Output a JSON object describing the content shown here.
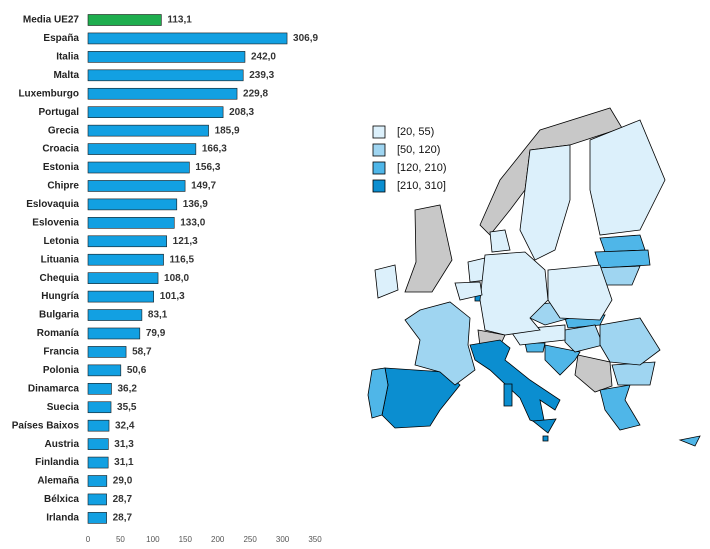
{
  "chart_data": {
    "type": "bar",
    "orientation": "horizontal",
    "categories": [
      "Media  UE27",
      "España",
      "Italia",
      "Malta",
      "Luxemburgo",
      "Portugal",
      "Grecia",
      "Croacia",
      "Estonia",
      "Chipre",
      "Eslovaquia",
      "Eslovenia",
      "Letonia",
      "Lituania",
      "Chequia",
      "Hungría",
      "Bulgaria",
      "Romanía",
      "Francia",
      "Polonia",
      "Dinamarca",
      "Suecia",
      "Países Baixos",
      "Austria",
      "Finlandia",
      "Alemaña",
      "Bélxica",
      "Irlanda"
    ],
    "values": [
      113.1,
      306.9,
      242.0,
      239.3,
      229.8,
      208.3,
      185.9,
      166.3,
      156.3,
      149.7,
      136.9,
      133.0,
      121.3,
      116.5,
      108.0,
      101.3,
      83.1,
      79.9,
      58.7,
      50.6,
      36.2,
      35.5,
      32.4,
      31.3,
      31.1,
      29.0,
      28.7,
      28.7
    ],
    "value_labels": [
      "113,1",
      "306,9",
      "242,0",
      "239,3",
      "229,8",
      "208,3",
      "185,9",
      "166,3",
      "156,3",
      "149,7",
      "136,9",
      "133,0",
      "121,3",
      "116,5",
      "108,0",
      "101,3",
      "83,1",
      "79,9",
      "58,7",
      "50,6",
      "36,2",
      "35,5",
      "32,4",
      "31,3",
      "31,1",
      "29,0",
      "28,7",
      "28,7"
    ],
    "colors": [
      "#1fae4f",
      "#12a0e2",
      "#12a0e2",
      "#12a0e2",
      "#12a0e2",
      "#12a0e2",
      "#12a0e2",
      "#12a0e2",
      "#12a0e2",
      "#12a0e2",
      "#12a0e2",
      "#12a0e2",
      "#12a0e2",
      "#12a0e2",
      "#12a0e2",
      "#12a0e2",
      "#12a0e2",
      "#12a0e2",
      "#12a0e2",
      "#12a0e2",
      "#12a0e2",
      "#12a0e2",
      "#12a0e2",
      "#12a0e2",
      "#12a0e2",
      "#12a0e2",
      "#12a0e2",
      "#12a0e2"
    ],
    "xlim": [
      0,
      350
    ],
    "xticks": [
      0,
      50,
      100,
      150,
      200,
      250,
      300,
      350
    ],
    "map_legend": [
      {
        "label": "[20, 55)",
        "range": [
          20,
          55
        ],
        "color": "#dcf0fb"
      },
      {
        "label": "[50, 120)",
        "range": [
          50,
          120
        ],
        "color": "#9fd5f1"
      },
      {
        "label": "[120, 210)",
        "range": [
          120,
          210
        ],
        "color": "#4fb6e8"
      },
      {
        "label": "[210, 310]",
        "range": [
          210,
          310
        ],
        "color": "#0b8ed0"
      }
    ]
  }
}
